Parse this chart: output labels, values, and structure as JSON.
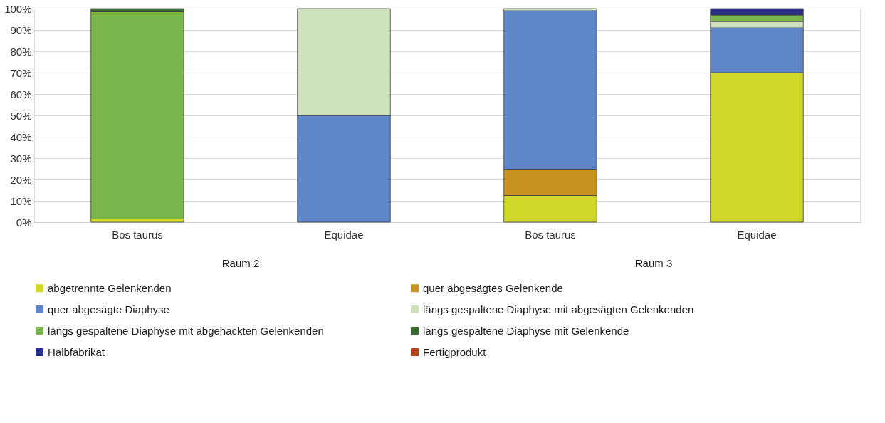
{
  "chart_data": {
    "type": "bar",
    "stacked": true,
    "categories": [
      "Bos taurus",
      "Equidae",
      "Bos taurus",
      "Equidae"
    ],
    "annotations": [
      "Raum 2",
      "Raum 3"
    ],
    "ylim": [
      0,
      100
    ],
    "yticks": [
      {
        "value": 0,
        "label": "0%"
      },
      {
        "value": 10,
        "label": "10%"
      },
      {
        "value": 20,
        "label": "20%"
      },
      {
        "value": 30,
        "label": "30%"
      },
      {
        "value": 40,
        "label": "40%"
      },
      {
        "value": 50,
        "label": "50%"
      },
      {
        "value": 60,
        "label": "60%"
      },
      {
        "value": 70,
        "label": "70%"
      },
      {
        "value": 80,
        "label": "80%"
      },
      {
        "value": 90,
        "label": "90%"
      },
      {
        "value": 100,
        "label": "100%"
      }
    ],
    "grid": "y",
    "legend": "bottom",
    "series": [
      {
        "name": "abgetrennte Gelenkenden",
        "color": "#d0d82c",
        "values": [
          1.5,
          0,
          12.5,
          70
        ]
      },
      {
        "name": "quer abgesägtes Gelenkende",
        "color": "#c79320",
        "values": [
          0,
          0,
          12,
          0
        ]
      },
      {
        "name": "quer abgesägte Diaphyse",
        "color": "#5f86c6",
        "values": [
          0,
          50,
          74.5,
          21
        ]
      },
      {
        "name": "längs gespaltene Diaphyse mit abgesägten Gelenkenden",
        "color": "#cde2bd",
        "values": [
          0,
          50,
          1,
          3
        ]
      },
      {
        "name": "längs gespaltene Diaphyse mit abgehackten Gelenkenden",
        "color": "#7ab54e",
        "values": [
          97,
          0,
          0,
          3
        ]
      },
      {
        "name": "längs gespaltene Diaphyse mit Gelenkende",
        "color": "#3b6b2e",
        "values": [
          1.5,
          0,
          0,
          0
        ]
      },
      {
        "name": "Halbfabrikat",
        "color": "#2a2f8c",
        "values": [
          0,
          0,
          0,
          3
        ]
      },
      {
        "name": "Fertigprodukt",
        "color": "#b5431c",
        "values": [
          0,
          0,
          0,
          0
        ]
      }
    ]
  }
}
